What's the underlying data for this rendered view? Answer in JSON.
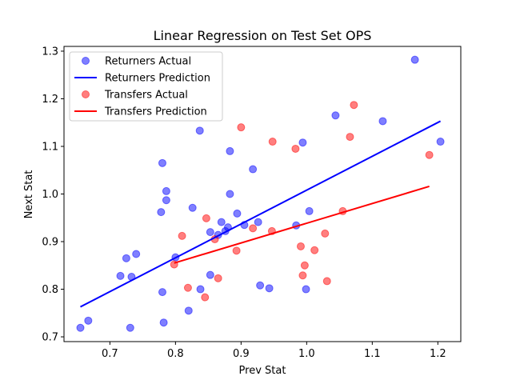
{
  "chart_data": {
    "type": "scatter",
    "title": "Linear Regression on Test Set OPS",
    "xlabel": "Prev Stat",
    "ylabel": "Next Stat",
    "xlim": [
      0.63,
      1.235
    ],
    "ylim": [
      0.69,
      1.31
    ],
    "x_ticks": [
      "0.7",
      "0.8",
      "0.9",
      "1.0",
      "1.1",
      "1.2"
    ],
    "y_ticks": [
      "0.7",
      "0.8",
      "0.9",
      "1.0",
      "1.1",
      "1.2",
      "1.3"
    ],
    "legend_position": "upper-left",
    "grid": false,
    "series": [
      {
        "name": "Returners Actual",
        "kind": "scatter",
        "color": "#0000ff",
        "points": [
          [
            0.655,
            0.719
          ],
          [
            0.667,
            0.734
          ],
          [
            0.716,
            0.828
          ],
          [
            0.725,
            0.865
          ],
          [
            0.731,
            0.719
          ],
          [
            0.733,
            0.826
          ],
          [
            0.74,
            0.874
          ],
          [
            0.778,
            0.962
          ],
          [
            0.78,
            0.794
          ],
          [
            0.78,
            1.065
          ],
          [
            0.782,
            0.73
          ],
          [
            0.786,
            1.006
          ],
          [
            0.786,
            0.987
          ],
          [
            0.8,
            0.867
          ],
          [
            0.82,
            0.755
          ],
          [
            0.826,
            0.971
          ],
          [
            0.837,
            1.133
          ],
          [
            0.838,
            0.8
          ],
          [
            0.853,
            0.83
          ],
          [
            0.853,
            0.92
          ],
          [
            0.865,
            0.914
          ],
          [
            0.87,
            0.941
          ],
          [
            0.876,
            0.922
          ],
          [
            0.88,
            0.93
          ],
          [
            0.883,
            1.09
          ],
          [
            0.883,
            1.0
          ],
          [
            0.894,
            0.959
          ],
          [
            0.905,
            0.935
          ],
          [
            0.918,
            1.052
          ],
          [
            0.926,
            0.941
          ],
          [
            0.929,
            0.808
          ],
          [
            0.943,
            0.802
          ],
          [
            0.984,
            0.934
          ],
          [
            0.994,
            1.108
          ],
          [
            0.999,
            0.8
          ],
          [
            1.004,
            0.964
          ],
          [
            1.044,
            1.165
          ],
          [
            1.116,
            1.153
          ],
          [
            1.165,
            1.282
          ],
          [
            1.204,
            1.11
          ]
        ]
      },
      {
        "name": "Returners Prediction",
        "kind": "line",
        "color": "#0000ff",
        "points": [
          [
            0.655,
            0.763
          ],
          [
            1.204,
            1.153
          ]
        ]
      },
      {
        "name": "Transfers Actual",
        "kind": "scatter",
        "color": "#ff0000",
        "points": [
          [
            0.798,
            0.852
          ],
          [
            0.81,
            0.912
          ],
          [
            0.819,
            0.803
          ],
          [
            0.845,
            0.783
          ],
          [
            0.847,
            0.949
          ],
          [
            0.86,
            0.905
          ],
          [
            0.865,
            0.823
          ],
          [
            0.893,
            0.881
          ],
          [
            0.9,
            1.14
          ],
          [
            0.918,
            0.928
          ],
          [
            0.947,
            0.922
          ],
          [
            0.948,
            1.11
          ],
          [
            0.983,
            1.095
          ],
          [
            0.991,
            0.89
          ],
          [
            0.994,
            0.829
          ],
          [
            0.997,
            0.85
          ],
          [
            1.012,
            0.882
          ],
          [
            1.028,
            0.917
          ],
          [
            1.031,
            0.817
          ],
          [
            1.055,
            0.964
          ],
          [
            1.066,
            1.12
          ],
          [
            1.072,
            1.187
          ],
          [
            1.187,
            1.082
          ]
        ]
      },
      {
        "name": "Transfers Prediction",
        "kind": "line",
        "color": "#ff0000",
        "points": [
          [
            0.798,
            0.855
          ],
          [
            1.187,
            1.016
          ]
        ]
      }
    ]
  }
}
